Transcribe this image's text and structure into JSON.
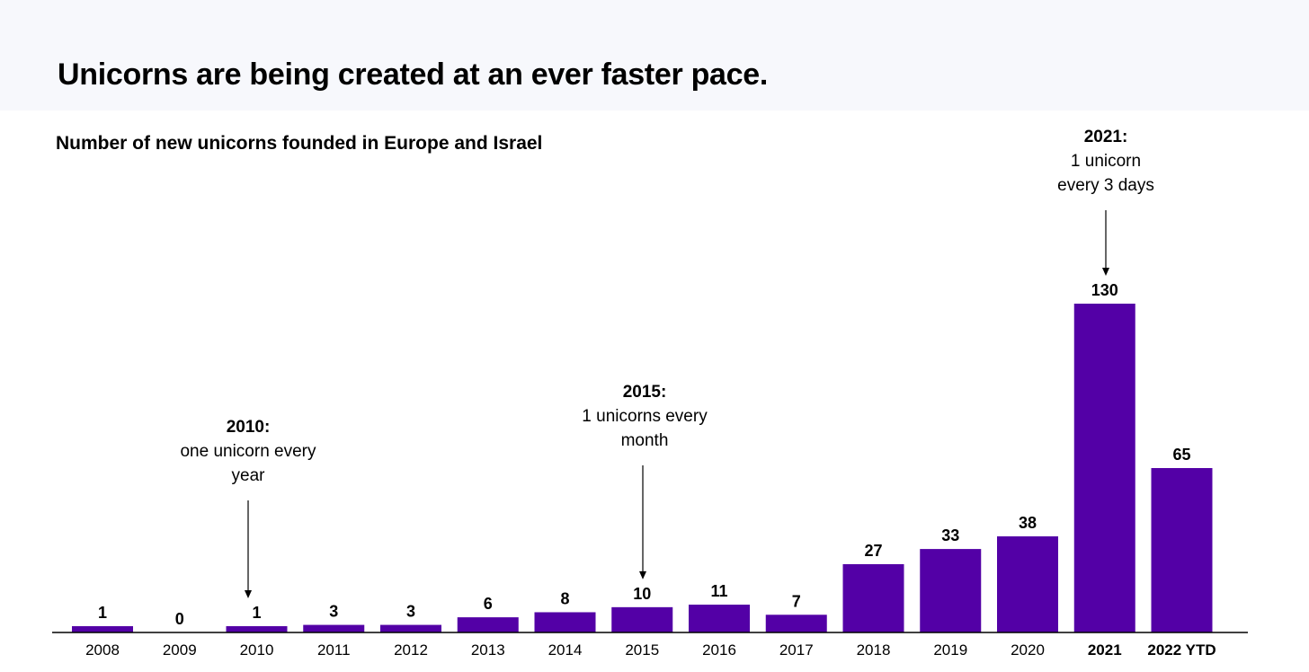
{
  "header": {
    "title": "Unicorns are being created at an ever faster pace."
  },
  "chart_data": {
    "type": "bar",
    "title": "Number of new unicorns founded in Europe and Israel",
    "xlabel": "",
    "ylabel": "",
    "ylim": [
      0,
      130
    ],
    "color": "#5300a6",
    "categories": [
      "2008",
      "2009",
      "2010",
      "2011",
      "2012",
      "2013",
      "2014",
      "2015",
      "2016",
      "2017",
      "2018",
      "2019",
      "2020",
      "2021",
      "2022 YTD"
    ],
    "values": [
      1,
      0,
      1,
      3,
      3,
      6,
      8,
      10,
      11,
      7,
      27,
      33,
      38,
      130,
      65
    ],
    "bold_categories": [
      "2021",
      "2022 YTD"
    ],
    "annotations": [
      {
        "category": "2010",
        "heading": "2010:",
        "line1": "one unicorn every",
        "line2": "year"
      },
      {
        "category": "2015",
        "heading": "2015:",
        "line1": "1 unicorns every",
        "line2": "month"
      },
      {
        "category": "2021",
        "heading": "2021:",
        "line1": "1 unicorn",
        "line2": "every 3 days"
      }
    ]
  }
}
